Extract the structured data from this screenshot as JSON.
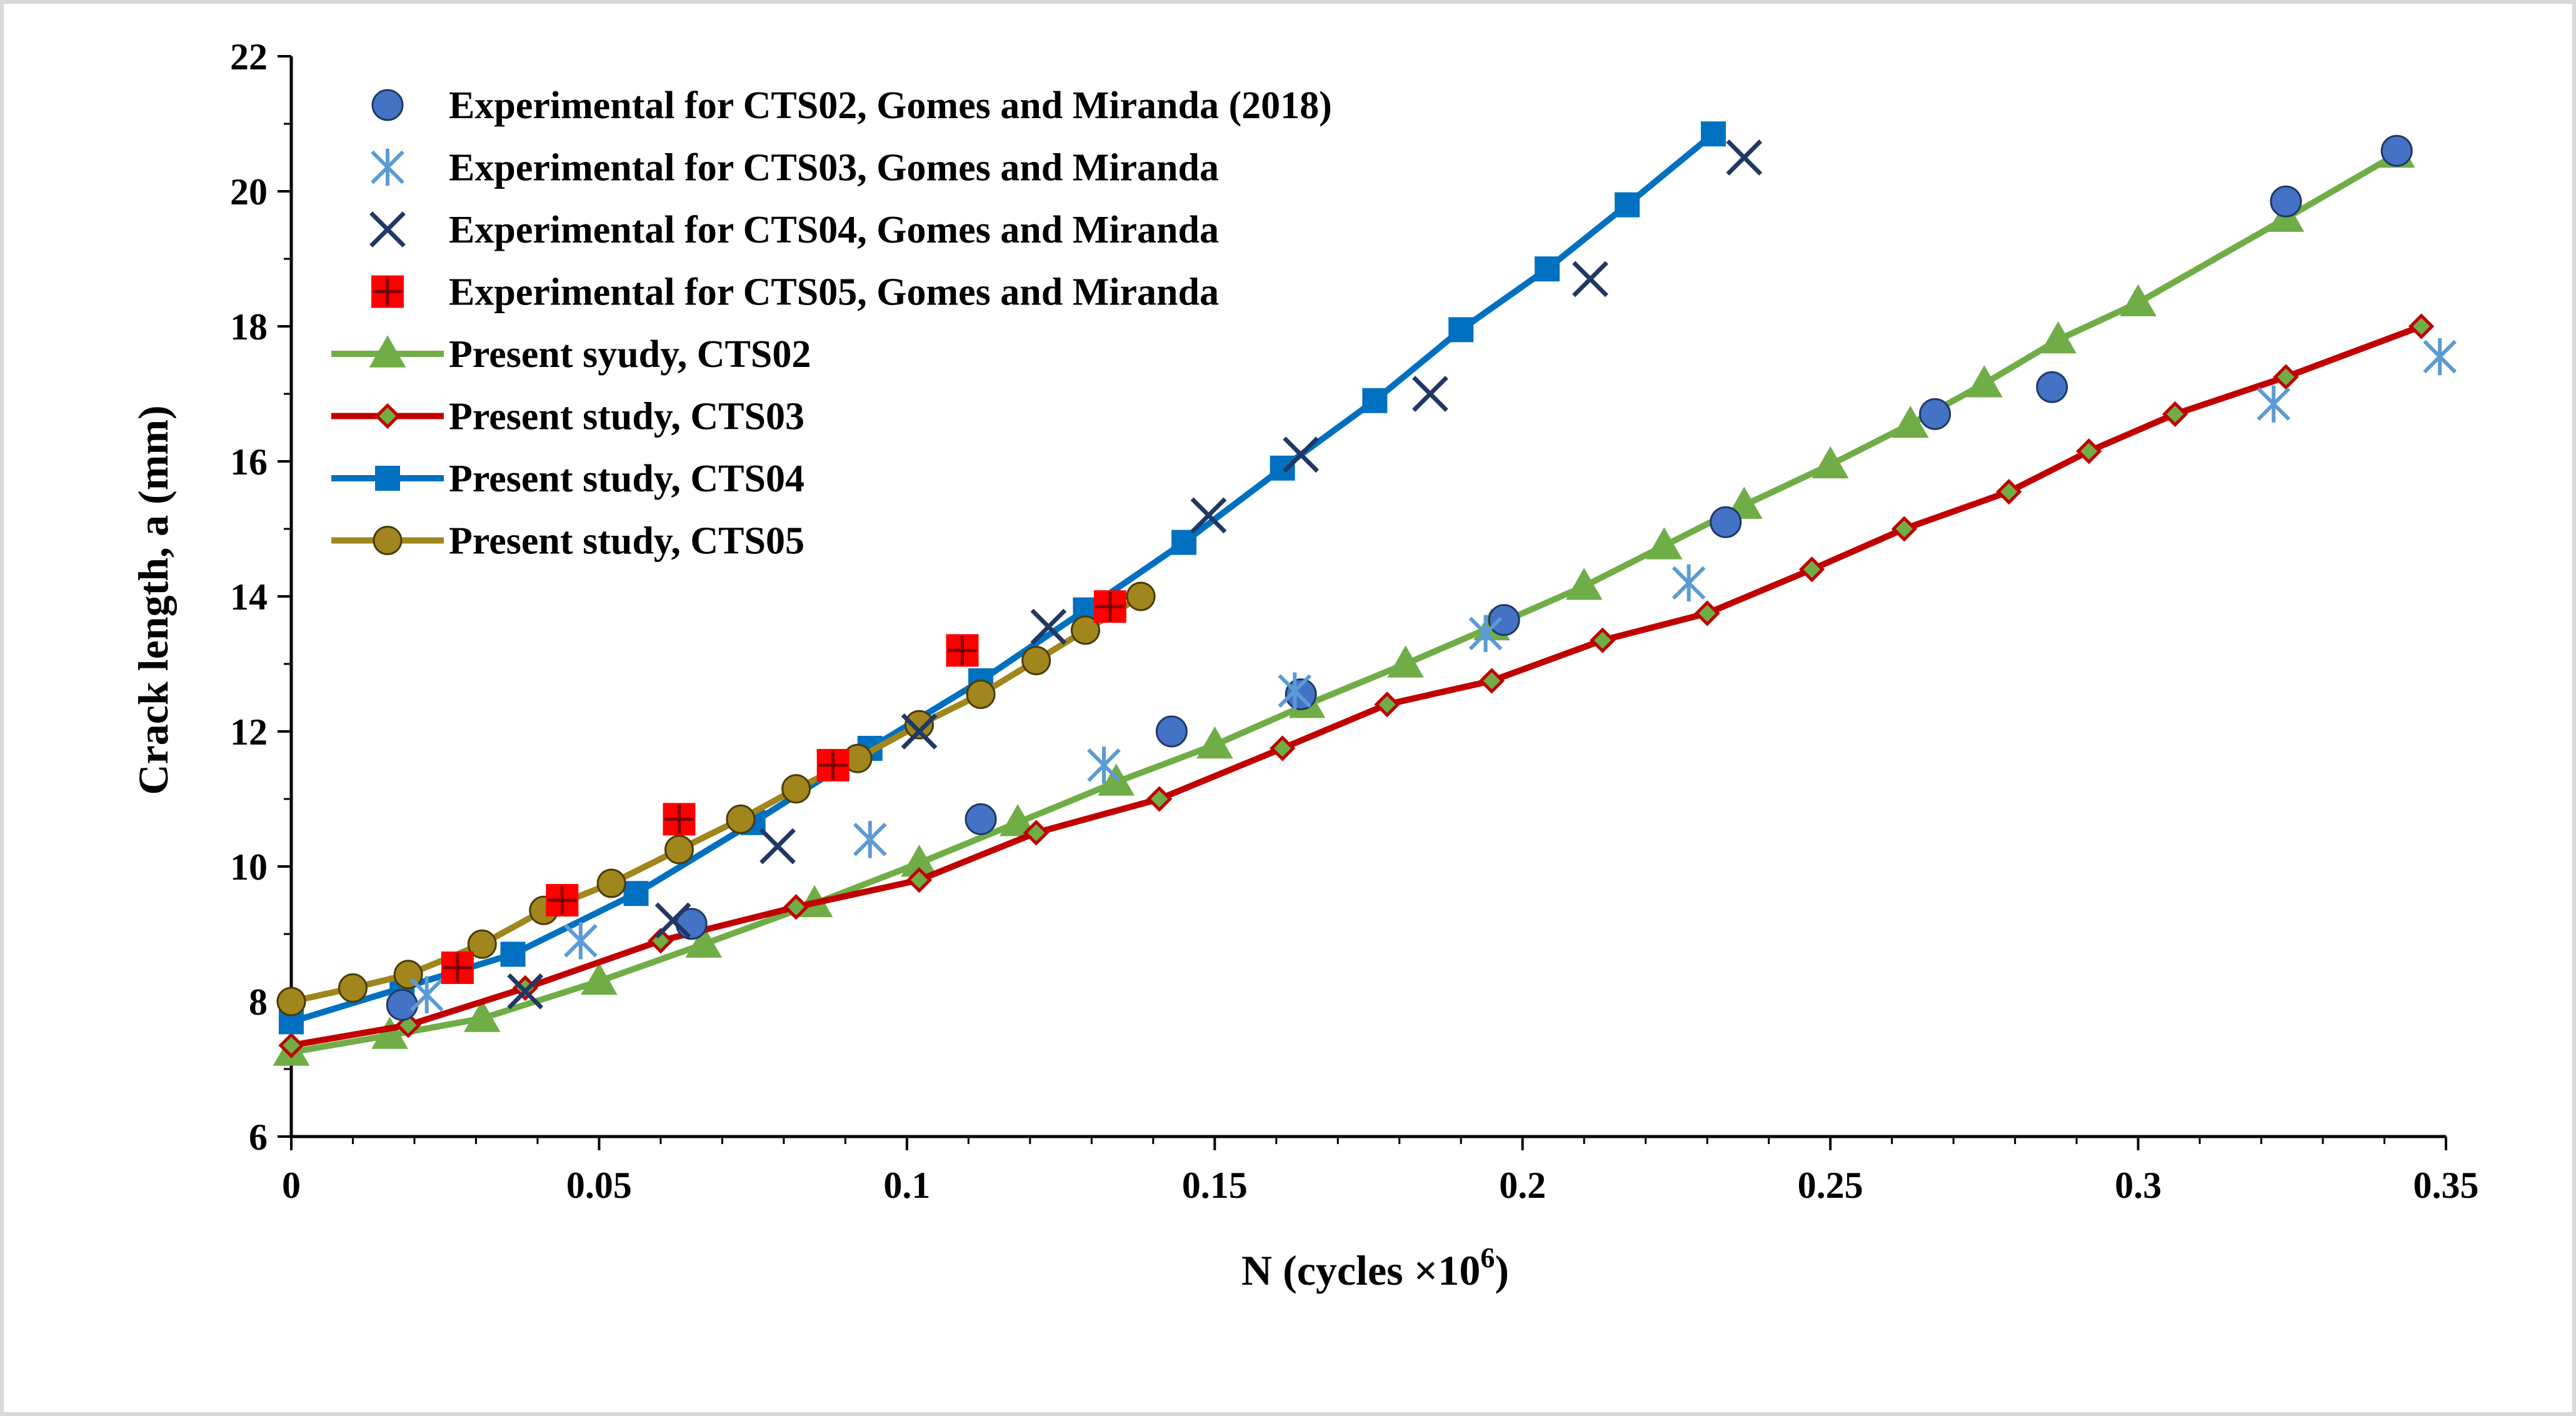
{
  "chart_data": {
    "type": "scatter",
    "title": "",
    "xlabel": "N (cycles ×10",
    "xlabel_sup": "6",
    "xlabel_close": ")",
    "ylabel": "Crack length, a (mm)",
    "xlim": [
      0,
      0.35
    ],
    "ylim": [
      6,
      22
    ],
    "x_ticks": [
      0,
      0.05,
      0.1,
      0.15,
      0.2,
      0.25,
      0.3,
      0.35
    ],
    "x_tick_labels": [
      "0",
      "0.05",
      "0.1",
      "0.15",
      "0.2",
      "0.25",
      "0.3",
      "0.35"
    ],
    "y_ticks": [
      6,
      8,
      10,
      12,
      14,
      16,
      18,
      20,
      22
    ],
    "y_tick_labels": [
      "6",
      "8",
      "10",
      "12",
      "14",
      "16",
      "18",
      "20",
      "22"
    ],
    "grid": false,
    "legend_position": "top-left",
    "series": [
      {
        "name": "Experimental for CTS02, Gomes and Miranda (2018)",
        "kind": "marker",
        "marker": "circle",
        "color": "#4472C4",
        "edge": "#1F3864",
        "x": [
          0.018,
          0.065,
          0.112,
          0.143,
          0.164,
          0.197,
          0.233,
          0.267,
          0.286,
          0.324,
          0.342
        ],
        "y": [
          7.95,
          9.15,
          10.7,
          12.0,
          12.55,
          13.65,
          15.1,
          16.7,
          17.1,
          19.85,
          20.6
        ]
      },
      {
        "name": "Experimental for CTS03, Gomes and Miranda",
        "kind": "marker",
        "marker": "star",
        "color": "#5B9BD5",
        "x": [
          0.022,
          0.047,
          0.094,
          0.132,
          0.163,
          0.194,
          0.227,
          0.322,
          0.349
        ],
        "y": [
          8.1,
          8.9,
          10.4,
          11.5,
          12.6,
          13.45,
          14.2,
          16.85,
          17.55
        ]
      },
      {
        "name": "Experimental for CTS04, Gomes and Miranda",
        "kind": "marker",
        "marker": "x",
        "color": "#203864",
        "x": [
          0.038,
          0.062,
          0.079,
          0.102,
          0.123,
          0.149,
          0.164,
          0.185,
          0.211,
          0.236
        ],
        "y": [
          8.15,
          9.2,
          10.3,
          12.0,
          13.55,
          15.2,
          16.1,
          17.0,
          18.7,
          20.5
        ]
      },
      {
        "name": "Experimental for CTS05, Gomes and Miranda",
        "kind": "marker",
        "marker": "square-plus",
        "color": "#FF0000",
        "x": [
          0.027,
          0.044,
          0.063,
          0.088,
          0.109,
          0.133
        ],
        "y": [
          8.5,
          9.5,
          10.7,
          11.5,
          13.2,
          13.85
        ]
      },
      {
        "name": "Present syudy, CTS02",
        "kind": "line",
        "marker": "triangle",
        "color": "#70AD47",
        "x": [
          0,
          0.016,
          0.031,
          0.05,
          0.067,
          0.085,
          0.102,
          0.118,
          0.134,
          0.15,
          0.165,
          0.181,
          0.195,
          0.21,
          0.223,
          0.236,
          0.25,
          0.263,
          0.275,
          0.287,
          0.3,
          0.324,
          0.342
        ],
        "y": [
          7.25,
          7.5,
          7.75,
          8.3,
          8.85,
          9.45,
          10.05,
          10.65,
          11.25,
          11.8,
          12.4,
          13.0,
          13.55,
          14.15,
          14.75,
          15.35,
          15.95,
          16.55,
          17.15,
          17.8,
          18.35,
          19.6,
          20.55
        ]
      },
      {
        "name": "Present study, CTS03",
        "kind": "line",
        "marker": "diamond",
        "color": "#C00000",
        "marker_fill": "#70AD47",
        "x": [
          0,
          0.019,
          0.038,
          0.06,
          0.082,
          0.102,
          0.121,
          0.141,
          0.161,
          0.178,
          0.195,
          0.213,
          0.23,
          0.247,
          0.262,
          0.279,
          0.292,
          0.306,
          0.324,
          0.346
        ],
        "y": [
          7.35,
          7.65,
          8.2,
          8.9,
          9.4,
          9.8,
          10.5,
          11.0,
          11.75,
          12.4,
          12.75,
          13.35,
          13.75,
          14.4,
          15.0,
          15.55,
          16.15,
          16.7,
          17.25,
          18.0
        ]
      },
      {
        "name": "Present study, CTS04",
        "kind": "line",
        "marker": "square",
        "color": "#0070C0",
        "x": [
          0,
          0.018,
          0.036,
          0.056,
          0.075,
          0.094,
          0.112,
          0.129,
          0.145,
          0.161,
          0.176,
          0.19,
          0.204,
          0.217,
          0.231
        ],
        "y": [
          7.7,
          8.2,
          8.7,
          9.6,
          10.65,
          11.75,
          12.75,
          13.8,
          14.8,
          15.9,
          16.9,
          17.95,
          18.85,
          19.8,
          20.85
        ]
      },
      {
        "name": "Present study, CTS05",
        "kind": "line",
        "marker": "circle",
        "color": "#A0861C",
        "marker_fill": "#A0861C",
        "x": [
          0,
          0.01,
          0.019,
          0.031,
          0.041,
          0.052,
          0.063,
          0.073,
          0.082,
          0.092,
          0.102,
          0.112,
          0.121,
          0.129,
          0.138
        ],
        "y": [
          8.0,
          8.2,
          8.4,
          8.85,
          9.35,
          9.75,
          10.25,
          10.7,
          11.15,
          11.6,
          12.1,
          12.55,
          13.05,
          13.5,
          14.0
        ]
      }
    ]
  }
}
